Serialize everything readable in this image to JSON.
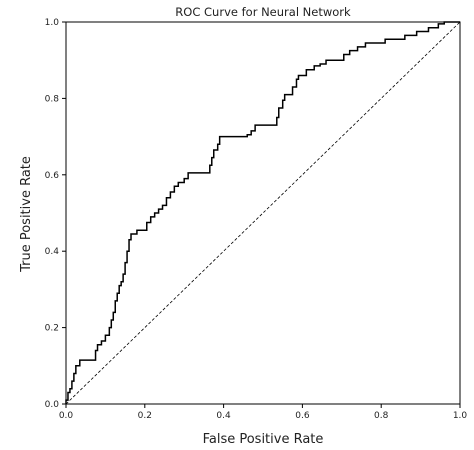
{
  "chart_data": {
    "type": "line",
    "title": "ROC Curve for Neural Network",
    "xlabel": "False Positive Rate",
    "ylabel": "True Positive Rate",
    "xlim": [
      0.0,
      1.0
    ],
    "ylim": [
      0.0,
      1.0
    ],
    "xticks": [
      "0.0",
      "0.2",
      "0.4",
      "0.6",
      "0.8",
      "1.0"
    ],
    "yticks": [
      "0.0",
      "0.2",
      "0.4",
      "0.6",
      "0.8",
      "1.0"
    ],
    "grid": false,
    "legend": "none",
    "series": [
      {
        "style": "step",
        "color": "#000000",
        "points": [
          [
            0.0,
            0.0
          ],
          [
            0.0,
            0.01
          ],
          [
            0.005,
            0.01
          ],
          [
            0.005,
            0.03
          ],
          [
            0.01,
            0.03
          ],
          [
            0.01,
            0.04
          ],
          [
            0.015,
            0.04
          ],
          [
            0.015,
            0.06
          ],
          [
            0.02,
            0.06
          ],
          [
            0.02,
            0.08
          ],
          [
            0.025,
            0.08
          ],
          [
            0.025,
            0.1
          ],
          [
            0.035,
            0.1
          ],
          [
            0.035,
            0.115
          ],
          [
            0.075,
            0.115
          ],
          [
            0.075,
            0.14
          ],
          [
            0.08,
            0.14
          ],
          [
            0.08,
            0.155
          ],
          [
            0.09,
            0.155
          ],
          [
            0.09,
            0.165
          ],
          [
            0.1,
            0.165
          ],
          [
            0.1,
            0.18
          ],
          [
            0.11,
            0.18
          ],
          [
            0.11,
            0.2
          ],
          [
            0.115,
            0.2
          ],
          [
            0.115,
            0.22
          ],
          [
            0.12,
            0.22
          ],
          [
            0.12,
            0.24
          ],
          [
            0.125,
            0.24
          ],
          [
            0.125,
            0.27
          ],
          [
            0.13,
            0.27
          ],
          [
            0.13,
            0.29
          ],
          [
            0.135,
            0.29
          ],
          [
            0.135,
            0.31
          ],
          [
            0.14,
            0.31
          ],
          [
            0.14,
            0.32
          ],
          [
            0.145,
            0.32
          ],
          [
            0.145,
            0.34
          ],
          [
            0.15,
            0.34
          ],
          [
            0.15,
            0.37
          ],
          [
            0.155,
            0.37
          ],
          [
            0.155,
            0.4
          ],
          [
            0.16,
            0.4
          ],
          [
            0.16,
            0.43
          ],
          [
            0.165,
            0.43
          ],
          [
            0.165,
            0.445
          ],
          [
            0.18,
            0.445
          ],
          [
            0.18,
            0.455
          ],
          [
            0.205,
            0.455
          ],
          [
            0.205,
            0.475
          ],
          [
            0.215,
            0.475
          ],
          [
            0.215,
            0.49
          ],
          [
            0.225,
            0.49
          ],
          [
            0.225,
            0.5
          ],
          [
            0.235,
            0.5
          ],
          [
            0.235,
            0.51
          ],
          [
            0.245,
            0.51
          ],
          [
            0.245,
            0.52
          ],
          [
            0.255,
            0.52
          ],
          [
            0.255,
            0.54
          ],
          [
            0.265,
            0.54
          ],
          [
            0.265,
            0.555
          ],
          [
            0.275,
            0.555
          ],
          [
            0.275,
            0.57
          ],
          [
            0.285,
            0.57
          ],
          [
            0.285,
            0.58
          ],
          [
            0.3,
            0.58
          ],
          [
            0.3,
            0.59
          ],
          [
            0.31,
            0.59
          ],
          [
            0.31,
            0.605
          ],
          [
            0.365,
            0.605
          ],
          [
            0.365,
            0.625
          ],
          [
            0.37,
            0.625
          ],
          [
            0.37,
            0.645
          ],
          [
            0.375,
            0.645
          ],
          [
            0.375,
            0.665
          ],
          [
            0.385,
            0.665
          ],
          [
            0.385,
            0.68
          ],
          [
            0.39,
            0.68
          ],
          [
            0.39,
            0.7
          ],
          [
            0.46,
            0.7
          ],
          [
            0.46,
            0.705
          ],
          [
            0.47,
            0.705
          ],
          [
            0.47,
            0.715
          ],
          [
            0.48,
            0.715
          ],
          [
            0.48,
            0.73
          ],
          [
            0.535,
            0.73
          ],
          [
            0.535,
            0.75
          ],
          [
            0.54,
            0.75
          ],
          [
            0.54,
            0.775
          ],
          [
            0.55,
            0.775
          ],
          [
            0.55,
            0.795
          ],
          [
            0.555,
            0.795
          ],
          [
            0.555,
            0.81
          ],
          [
            0.575,
            0.81
          ],
          [
            0.575,
            0.83
          ],
          [
            0.585,
            0.83
          ],
          [
            0.585,
            0.85
          ],
          [
            0.59,
            0.85
          ],
          [
            0.59,
            0.86
          ],
          [
            0.61,
            0.86
          ],
          [
            0.61,
            0.875
          ],
          [
            0.63,
            0.875
          ],
          [
            0.63,
            0.885
          ],
          [
            0.645,
            0.885
          ],
          [
            0.645,
            0.89
          ],
          [
            0.66,
            0.89
          ],
          [
            0.66,
            0.9
          ],
          [
            0.705,
            0.9
          ],
          [
            0.705,
            0.915
          ],
          [
            0.72,
            0.915
          ],
          [
            0.72,
            0.925
          ],
          [
            0.74,
            0.925
          ],
          [
            0.74,
            0.935
          ],
          [
            0.76,
            0.935
          ],
          [
            0.76,
            0.945
          ],
          [
            0.81,
            0.945
          ],
          [
            0.81,
            0.955
          ],
          [
            0.86,
            0.955
          ],
          [
            0.86,
            0.965
          ],
          [
            0.89,
            0.965
          ],
          [
            0.89,
            0.975
          ],
          [
            0.92,
            0.975
          ],
          [
            0.92,
            0.985
          ],
          [
            0.945,
            0.985
          ],
          [
            0.945,
            0.995
          ],
          [
            0.96,
            0.995
          ],
          [
            0.96,
            1.0
          ],
          [
            1.0,
            1.0
          ]
        ]
      },
      {
        "style": "dashed",
        "color": "#000000",
        "points": [
          [
            0.0,
            0.0
          ],
          [
            1.0,
            1.0
          ]
        ]
      }
    ]
  }
}
